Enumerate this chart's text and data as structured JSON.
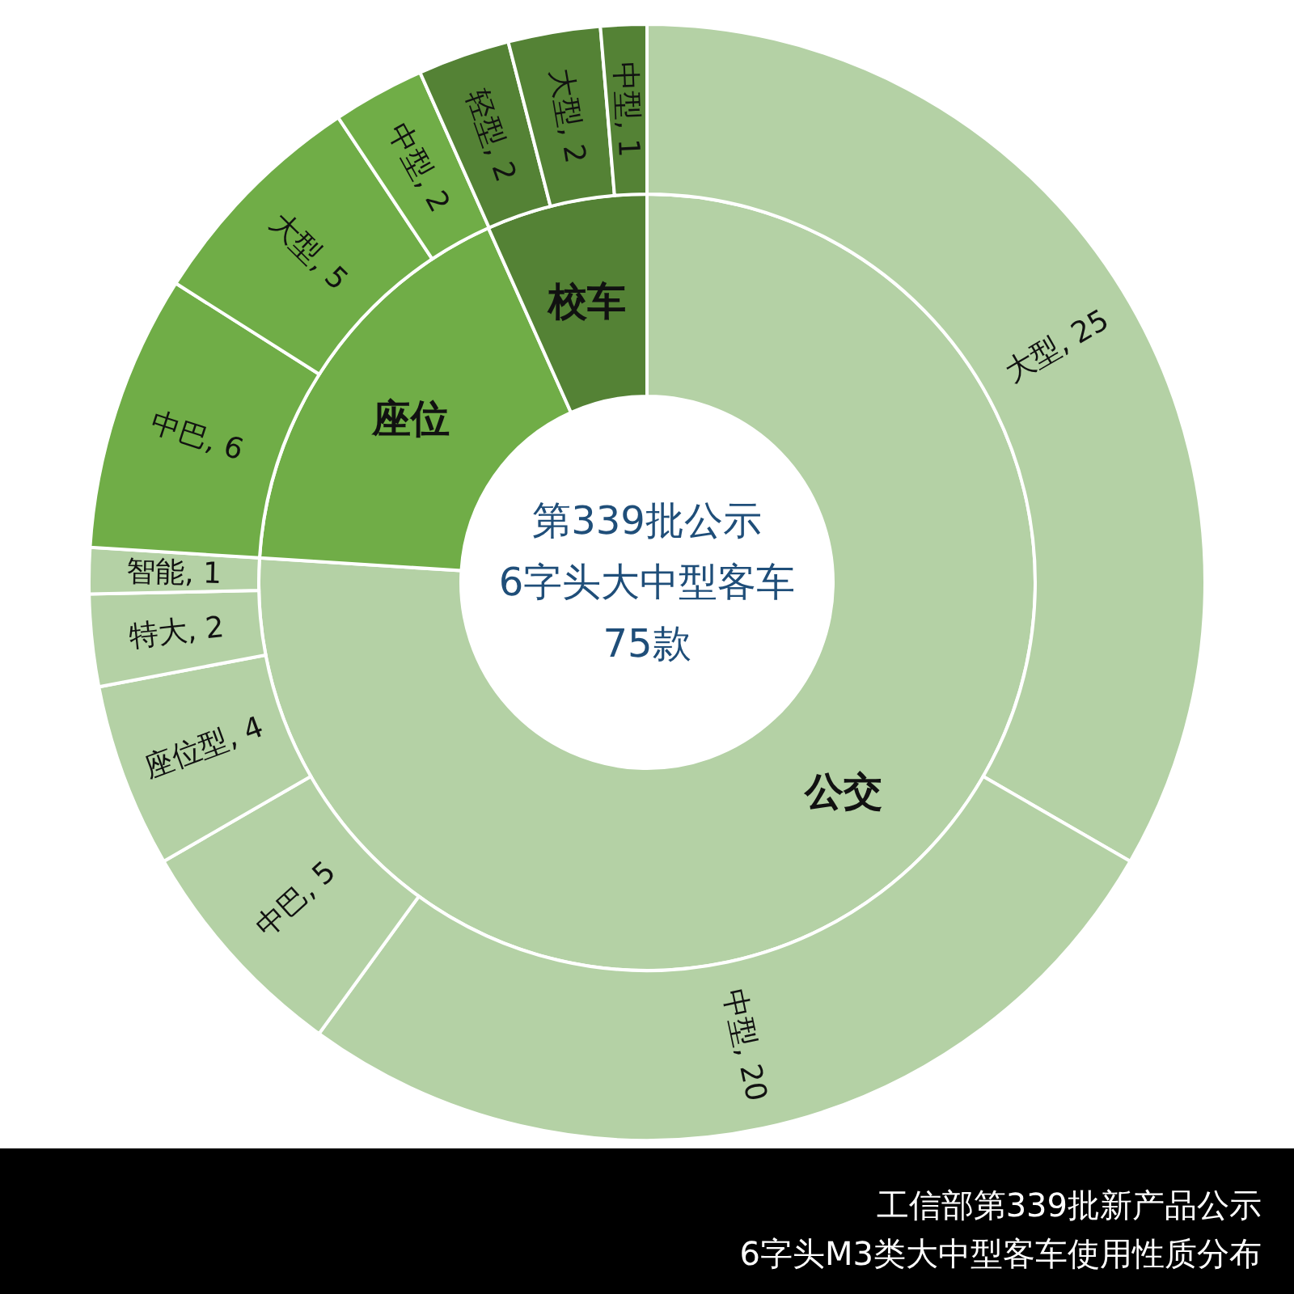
{
  "chart_data": [
    {
      "type": "donut",
      "categories": [
        "公交",
        "座位",
        "校车"
      ],
      "values": [
        76,
        17.3,
        6.7
      ],
      "colors": [
        "#b4d1a5",
        "#70ad47",
        "#548235"
      ],
      "annotations": [
        "第339批公示",
        "6字头大中型客车",
        "75款"
      ]
    },
    {
      "type": "donut",
      "categories": [
        "大型",
        "中型",
        "中巴",
        "座位型",
        "特大",
        "智能",
        "中巴",
        "大型",
        "中型",
        "轻型",
        "大型",
        "中型"
      ],
      "values": [
        25,
        20,
        5,
        4,
        2,
        1,
        6,
        5,
        2,
        2,
        2,
        1
      ],
      "colors": [
        "#b4d1a5",
        "#b4d1a5",
        "#b4d1a5",
        "#b4d1a5",
        "#b4d1a5",
        "#b4d1a5",
        "#70ad47",
        "#70ad47",
        "#70ad47",
        "#548235",
        "#548235",
        "#548235"
      ],
      "value_labels": [
        ", 25",
        ", 20",
        ", 5",
        ", 4",
        ", 2",
        ", 1",
        ", 6",
        ", 5",
        ", 2",
        ", 2",
        ", 2",
        ", 1"
      ],
      "annotations": [
        "工信部第339批新产品公示",
        "6字头M3类大中型客车使用性质分布"
      ]
    }
  ]
}
